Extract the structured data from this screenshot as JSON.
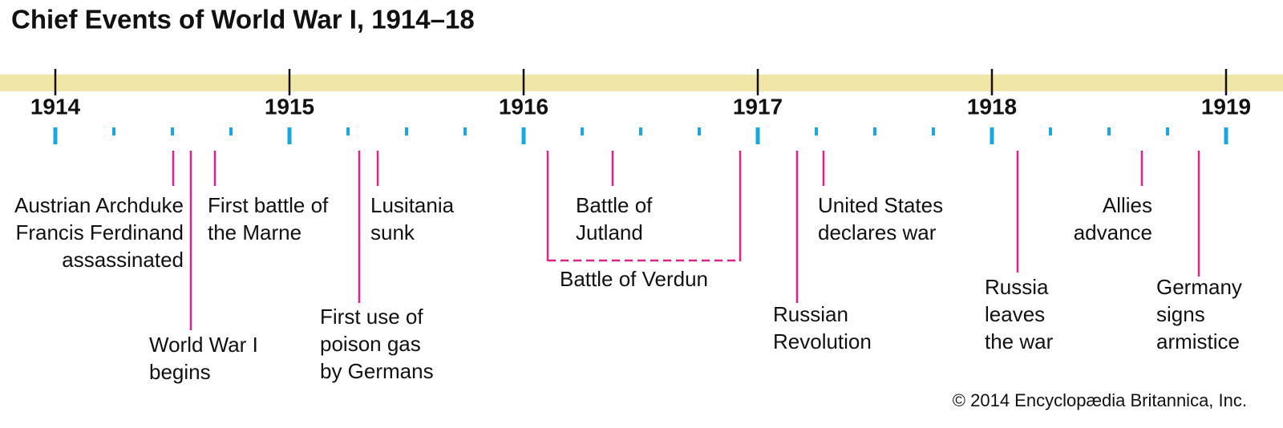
{
  "title": "Chief Events of World War I, 1914–18",
  "years": [
    "1914",
    "1915",
    "1916",
    "1917",
    "1918",
    "1919"
  ],
  "events": [
    {
      "lines": [
        "Austrian Archduke",
        "Francis Ferdinand",
        "assassinated"
      ]
    },
    {
      "lines": [
        "World War I",
        "begins"
      ]
    },
    {
      "lines": [
        "First battle of",
        "the Marne"
      ]
    },
    {
      "lines": [
        "First use of",
        "poison gas",
        "by Germans"
      ]
    },
    {
      "lines": [
        "Lusitania",
        "sunk"
      ]
    },
    {
      "lines": [
        "Battle of",
        "Jutland"
      ]
    },
    {
      "lines": [
        "Battle of Verdun"
      ]
    },
    {
      "lines": [
        "Russian",
        "Revolution"
      ]
    },
    {
      "lines": [
        "United States",
        "declares war"
      ]
    },
    {
      "lines": [
        "Russia",
        "leaves",
        "the war"
      ]
    },
    {
      "lines": [
        "Allies",
        "advance"
      ]
    },
    {
      "lines": [
        "Germany",
        "signs",
        "armistice"
      ]
    }
  ],
  "credit": "© 2014 Encyclopædia Britannica, Inc."
}
